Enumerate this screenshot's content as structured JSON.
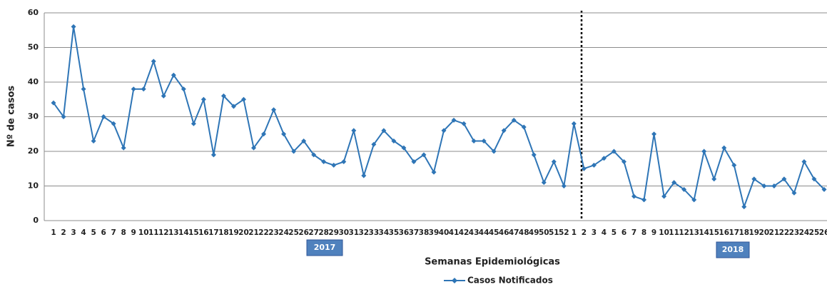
{
  "chart_data": {
    "type": "line",
    "y_label": "Nº de casos",
    "x_label": "Semanas Epidemiológicas",
    "annotations": [
      {
        "text": "2017"
      },
      {
        "text": "2018"
      }
    ],
    "categories": [
      "1",
      "2",
      "3",
      "4",
      "5",
      "6",
      "7",
      "8",
      "9",
      "10",
      "11",
      "12",
      "13",
      "14",
      "15",
      "16",
      "17",
      "18",
      "19",
      "20",
      "21",
      "22",
      "23",
      "24",
      "25",
      "26",
      "27",
      "28",
      "29",
      "30",
      "31",
      "32",
      "33",
      "34",
      "35",
      "36",
      "37",
      "38",
      "39",
      "40",
      "41",
      "42",
      "43",
      "44",
      "45",
      "46",
      "47",
      "48",
      "49",
      "50",
      "51",
      "52",
      "1",
      "2",
      "3",
      "4",
      "5",
      "6",
      "7",
      "8",
      "9",
      "10",
      "11",
      "12",
      "13",
      "14",
      "15",
      "16",
      "17",
      "18",
      "19",
      "20",
      "21",
      "22",
      "23",
      "24",
      "25",
      "26"
    ],
    "series": [
      {
        "name": "Casos Notificados",
        "color": "#2e75b6",
        "values": [
          34,
          30,
          56,
          38,
          23,
          30,
          28,
          21,
          38,
          38,
          46,
          36,
          42,
          38,
          28,
          35,
          19,
          36,
          33,
          35,
          21,
          25,
          32,
          25,
          20,
          23,
          19,
          17,
          16,
          17,
          26,
          13,
          22,
          26,
          23,
          21,
          17,
          19,
          14,
          26,
          29,
          28,
          23,
          23,
          20,
          26,
          29,
          27,
          19,
          11,
          17,
          10,
          28,
          15,
          16,
          18,
          20,
          17,
          7,
          6,
          25,
          7,
          11,
          9,
          6,
          20,
          12,
          21,
          16,
          4,
          12,
          10,
          10,
          12,
          8,
          17,
          12,
          9
        ]
      }
    ],
    "ylim": [
      0,
      60
    ],
    "yticks": [
      0,
      10,
      20,
      30,
      40,
      50,
      60
    ],
    "grid": true
  }
}
